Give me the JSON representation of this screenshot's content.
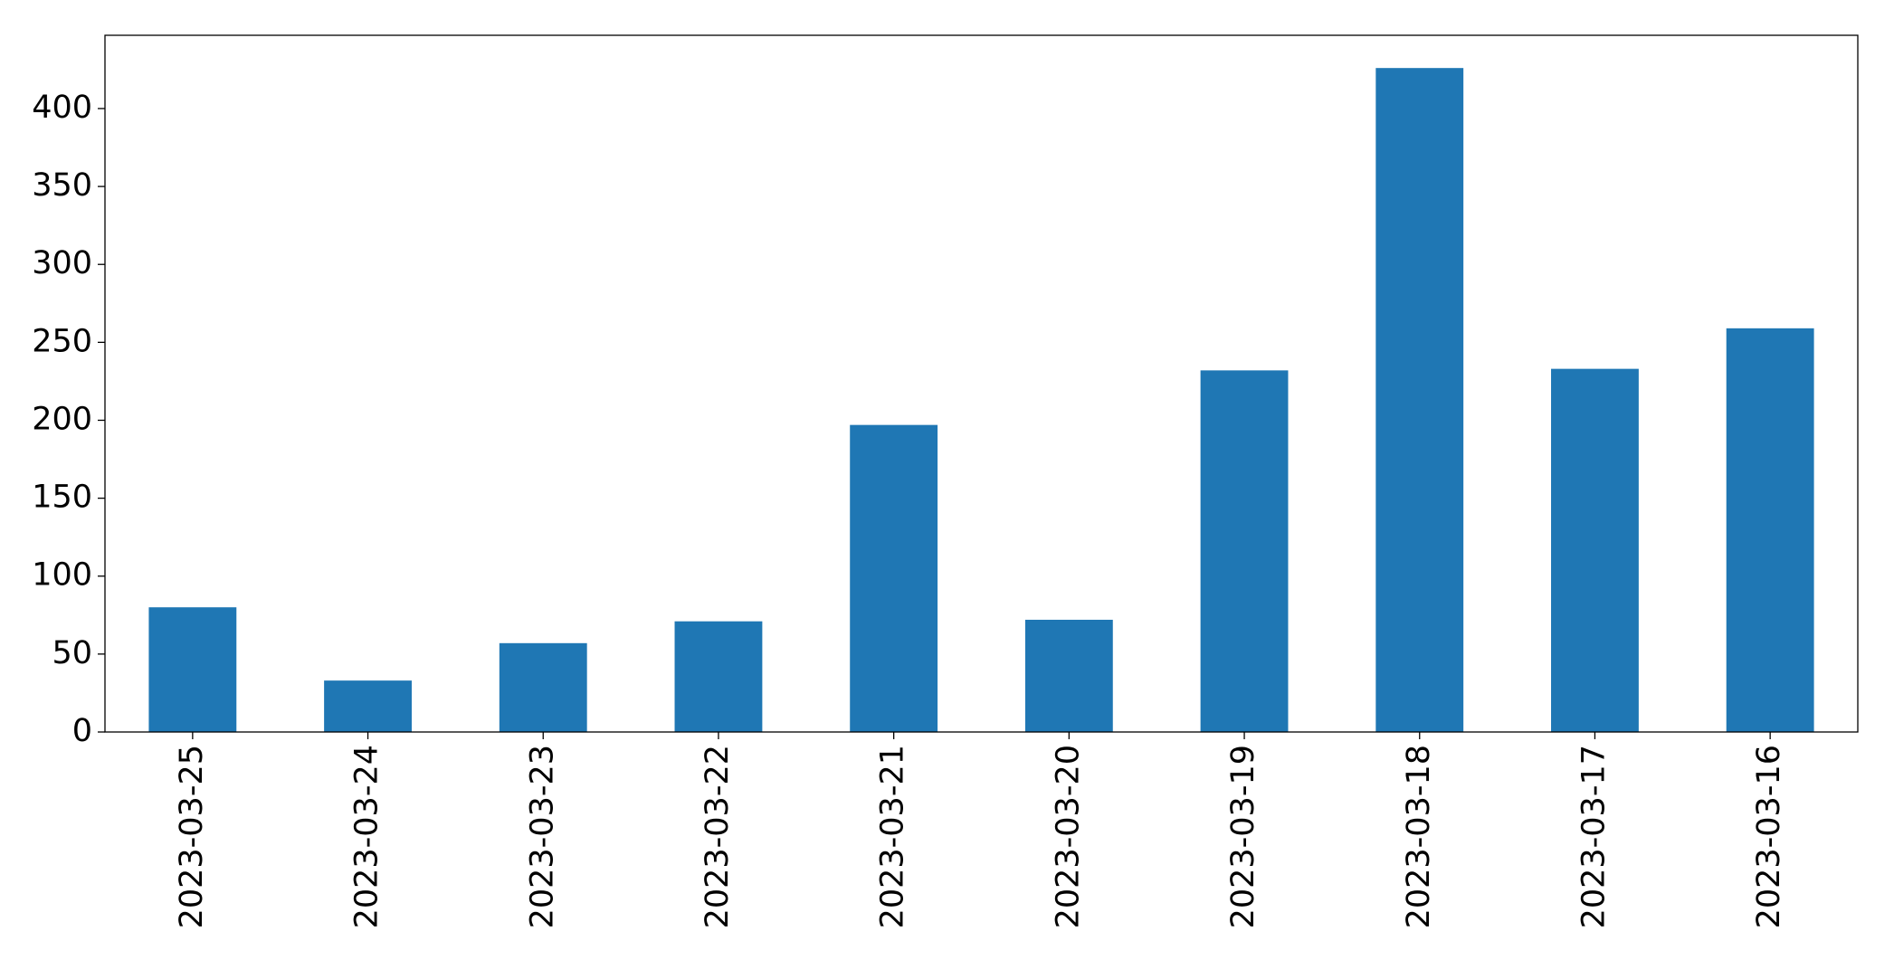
{
  "chart_data": {
    "type": "bar",
    "categories": [
      "2023-03-25",
      "2023-03-24",
      "2023-03-23",
      "2023-03-22",
      "2023-03-21",
      "2023-03-20",
      "2023-03-19",
      "2023-03-18",
      "2023-03-17",
      "2023-03-16"
    ],
    "values": [
      80,
      33,
      57,
      71,
      197,
      72,
      232,
      426,
      233,
      259
    ],
    "color": "#1f77b4",
    "ylim": [
      0,
      447
    ],
    "yticks": [
      0,
      50,
      100,
      150,
      200,
      250,
      300,
      350,
      400
    ],
    "grid": false
  }
}
